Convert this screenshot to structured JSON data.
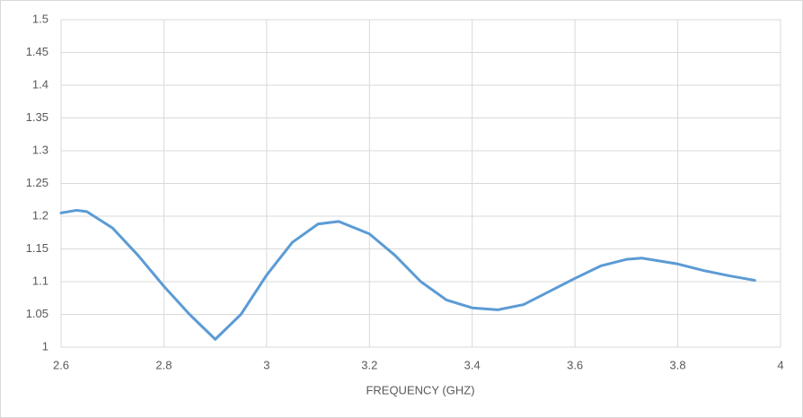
{
  "chart_data": {
    "type": "line",
    "x_label": "FREQUENCY (GHZ)",
    "x": [
      2.6,
      2.63,
      2.65,
      2.7,
      2.75,
      2.8,
      2.85,
      2.9,
      2.95,
      3.0,
      3.05,
      3.1,
      3.14,
      3.2,
      3.25,
      3.3,
      3.35,
      3.4,
      3.45,
      3.5,
      3.55,
      3.6,
      3.65,
      3.7,
      3.73,
      3.8,
      3.85,
      3.9,
      3.95
    ],
    "series": [
      {
        "color": "#5b9bd5",
        "values": [
          1.205,
          1.209,
          1.207,
          1.182,
          1.14,
          1.093,
          1.05,
          1.012,
          1.05,
          1.11,
          1.16,
          1.188,
          1.192,
          1.173,
          1.14,
          1.1,
          1.072,
          1.06,
          1.057,
          1.065,
          1.085,
          1.105,
          1.124,
          1.134,
          1.136,
          1.127,
          1.117,
          1.109,
          1.102
        ]
      }
    ],
    "xlim": [
      2.6,
      4
    ],
    "xticks": [
      2.6,
      2.8,
      3,
      3.2,
      3.4,
      3.6,
      3.8,
      4
    ],
    "ylim": [
      1,
      1.5
    ],
    "yticks": [
      1,
      1.05,
      1.1,
      1.15,
      1.2,
      1.25,
      1.3,
      1.35,
      1.4,
      1.45,
      1.5
    ],
    "grid": true
  }
}
